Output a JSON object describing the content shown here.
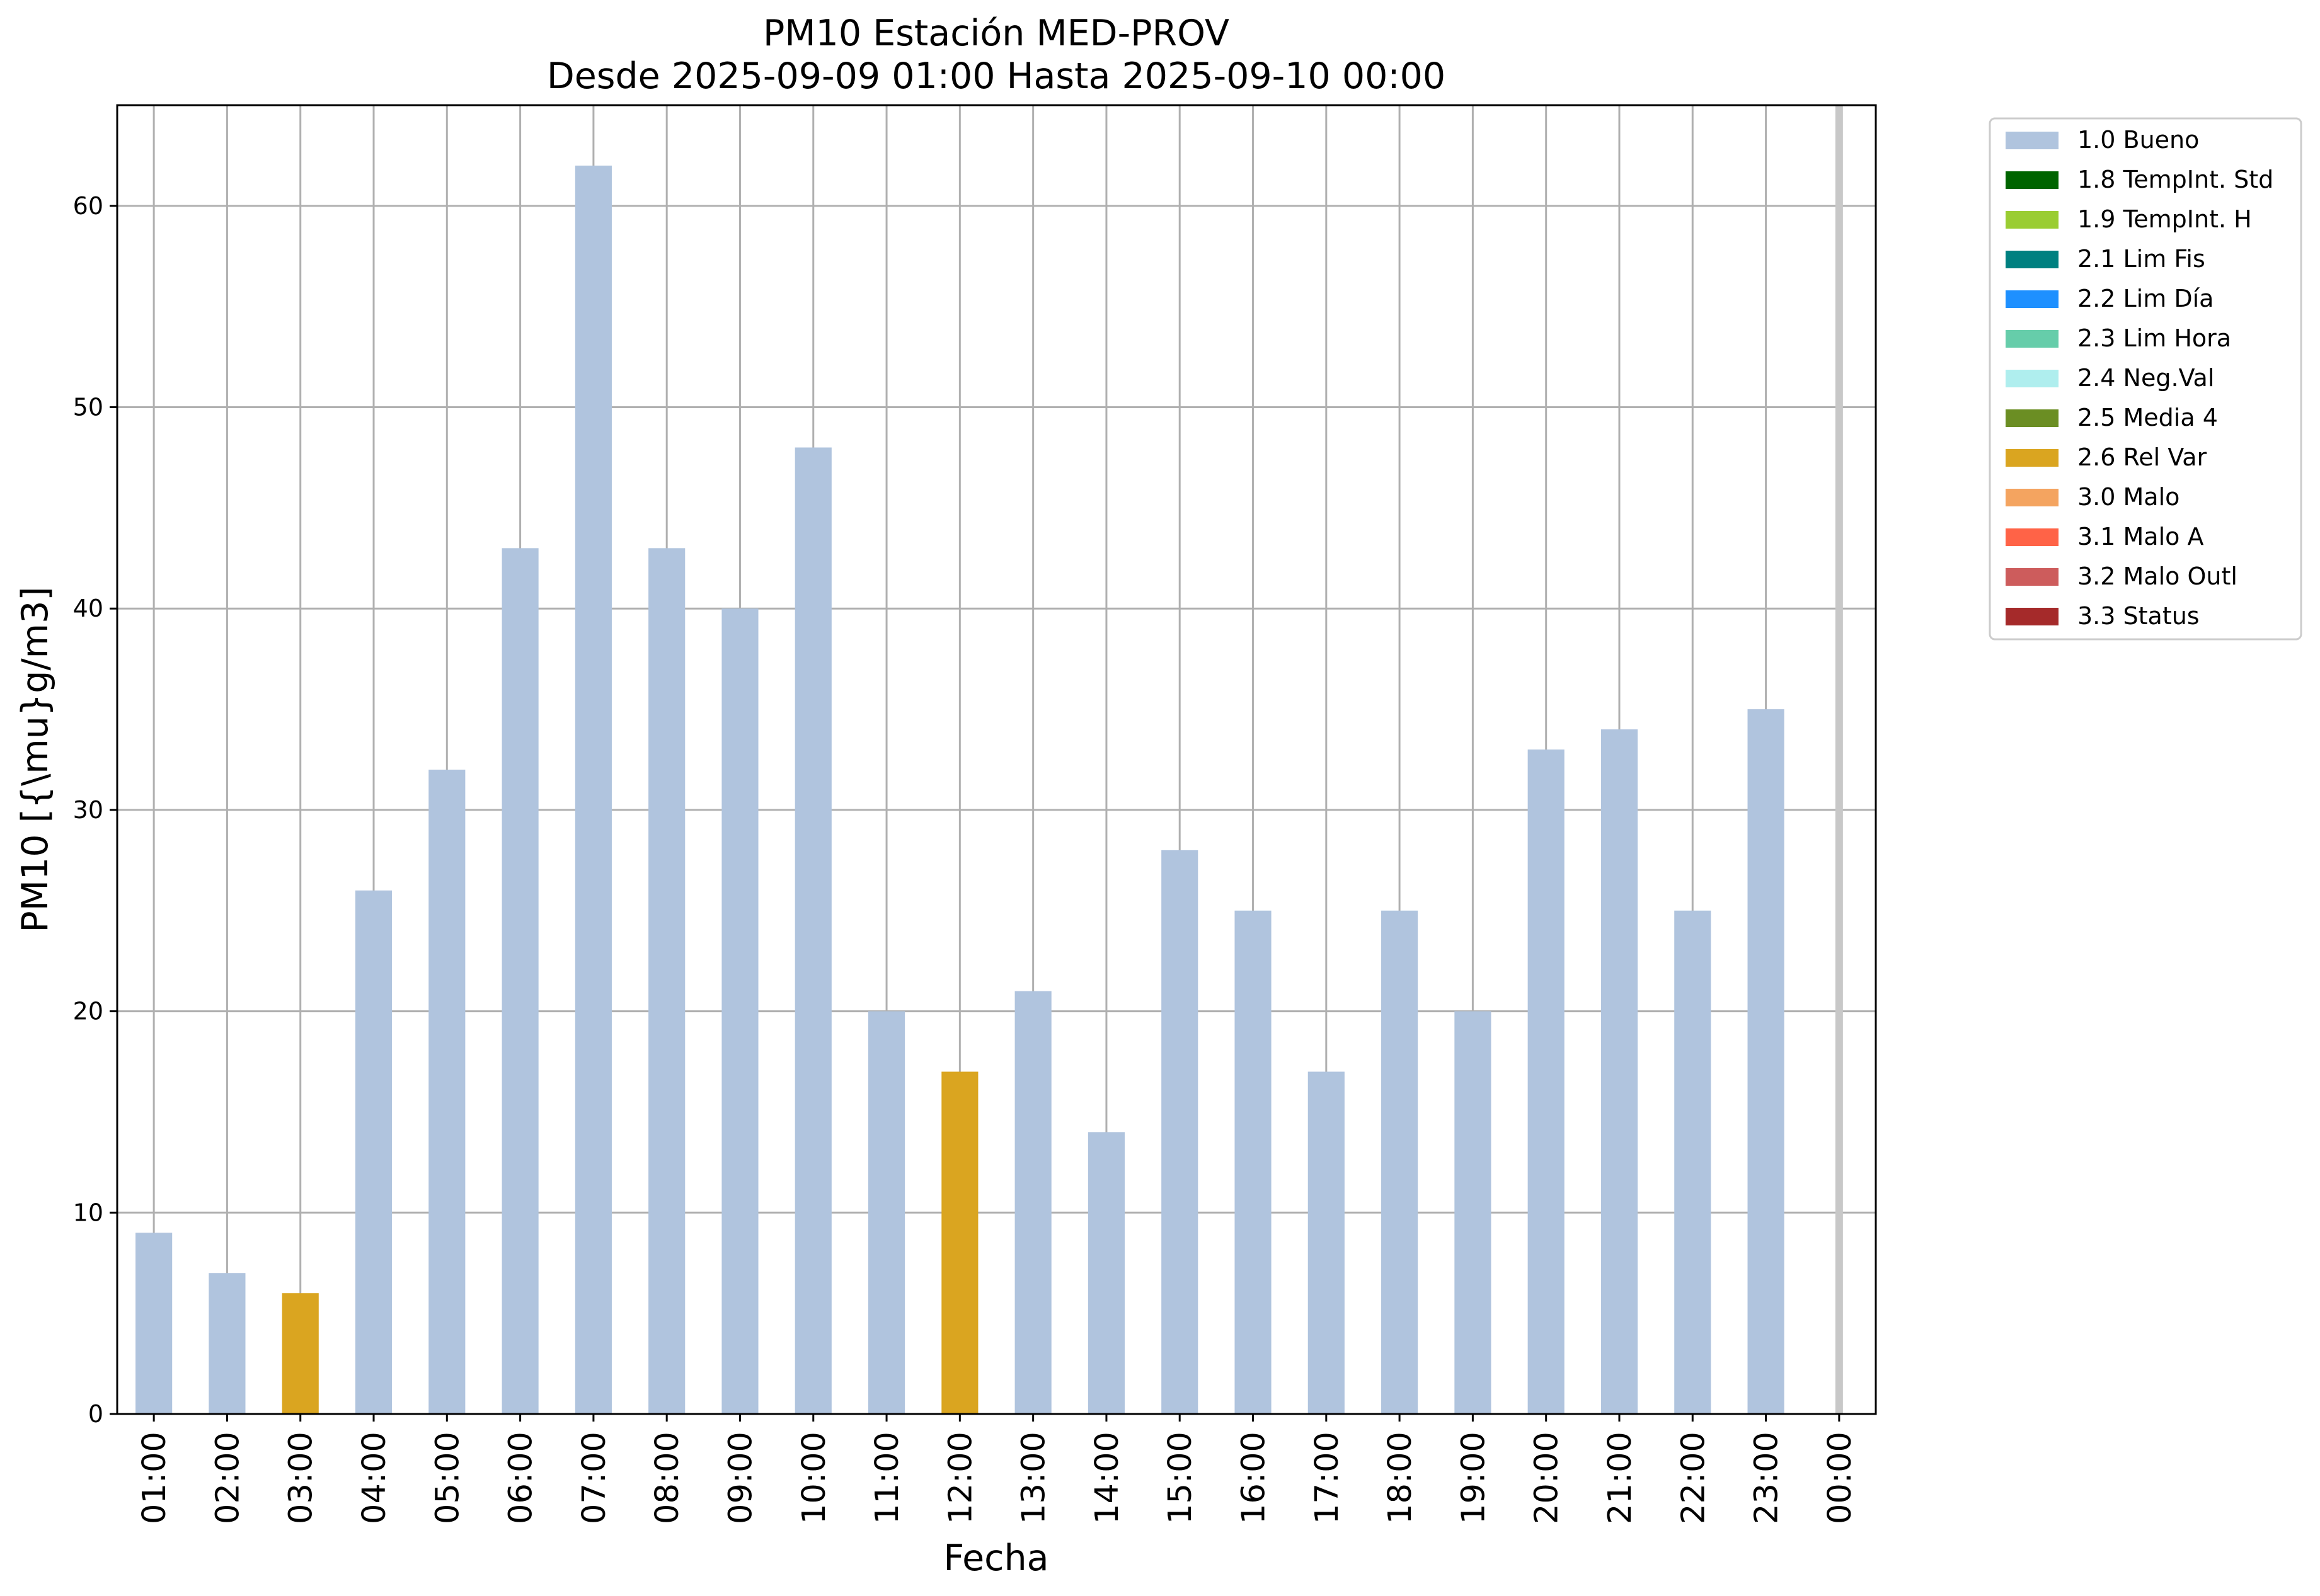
{
  "chart_data": {
    "type": "bar",
    "title": "PM10 Estación MED-PROV",
    "subtitle": "Desde 2025-09-09 01:00 Hasta 2025-09-10 00:00",
    "xlabel": "Fecha",
    "ylabel": "PM10 [{\\mu}g/m3]",
    "ylim": [
      0,
      65
    ],
    "yticks": [
      0,
      10,
      20,
      30,
      40,
      50,
      60
    ],
    "grid": true,
    "legend_position": "outside-right-top",
    "categories": [
      "01:00",
      "02:00",
      "03:00",
      "04:00",
      "05:00",
      "06:00",
      "07:00",
      "08:00",
      "09:00",
      "10:00",
      "11:00",
      "12:00",
      "13:00",
      "14:00",
      "15:00",
      "16:00",
      "17:00",
      "18:00",
      "19:00",
      "20:00",
      "21:00",
      "22:00",
      "23:00",
      "00:00"
    ],
    "values": [
      9,
      7,
      6,
      26,
      32,
      43,
      62,
      43,
      40,
      48,
      20,
      17,
      21,
      14,
      28,
      25,
      17,
      25,
      20,
      33,
      34,
      25,
      35,
      null
    ],
    "flags": [
      "1.0 Bueno",
      "1.0 Bueno",
      "2.6 Rel Var",
      "1.0 Bueno",
      "1.0 Bueno",
      "1.0 Bueno",
      "1.0 Bueno",
      "1.0 Bueno",
      "1.0 Bueno",
      "1.0 Bueno",
      "1.0 Bueno",
      "2.6 Rel Var",
      "1.0 Bueno",
      "1.0 Bueno",
      "1.0 Bueno",
      "1.0 Bueno",
      "1.0 Bueno",
      "1.0 Bueno",
      "1.0 Bueno",
      "1.0 Bueno",
      "1.0 Bueno",
      "1.0 Bueno",
      "1.0 Bueno",
      null
    ],
    "legend": [
      {
        "label": "1.0 Bueno",
        "color": "#b0c4de"
      },
      {
        "label": "1.8 TempInt. Std",
        "color": "#006400"
      },
      {
        "label": "1.9 TempInt. H",
        "color": "#9acd32"
      },
      {
        "label": "2.1 Lim Fis",
        "color": "#008080"
      },
      {
        "label": "2.2 Lim Día",
        "color": "#1e90ff"
      },
      {
        "label": "2.3 Lim Hora",
        "color": "#66cdaa"
      },
      {
        "label": "2.4 Neg.Val",
        "color": "#afeeee"
      },
      {
        "label": "2.5 Media 4",
        "color": "#6b8e23"
      },
      {
        "label": "2.6 Rel Var",
        "color": "#daa520"
      },
      {
        "label": "3.0 Malo",
        "color": "#f4a460"
      },
      {
        "label": "3.1 Malo A",
        "color": "#ff6347"
      },
      {
        "label": "3.2 Malo Outl",
        "color": "#cd5c5c"
      },
      {
        "label": "3.3 Status",
        "color": "#a52a2a"
      }
    ]
  }
}
